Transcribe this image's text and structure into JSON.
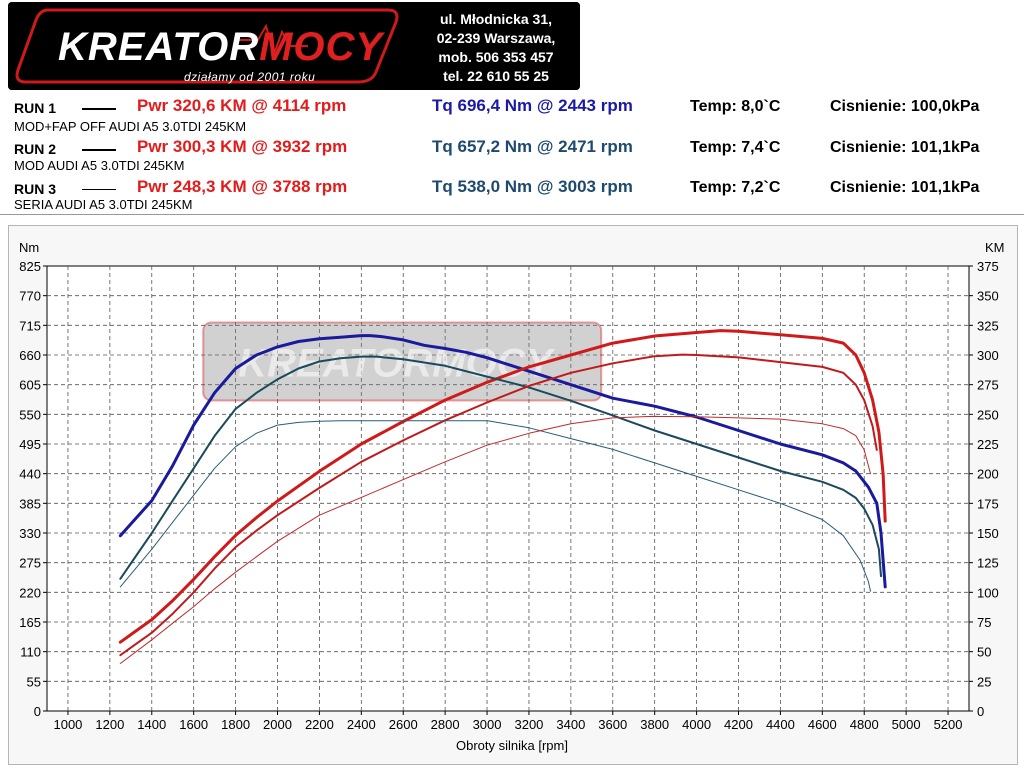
{
  "header": {
    "logo_text": "KREATORMOCY",
    "logo_part1": "KREATOR",
    "logo_part2": "MOCY",
    "tagline": "działamy od 2001 roku",
    "contact": [
      "ul. Młodnicka 31,",
      "02-239  Warszawa,",
      "mob.  506 353 457",
      "tel.  22 610 55 25"
    ]
  },
  "runs": [
    {
      "label": "RUN 1",
      "line_width": 2,
      "pwr": "Pwr  320,6 KM @ 4114 rpm",
      "tq": "Tq 696,4 Nm @ 2443 rpm",
      "tq_color": "#1a1aa6",
      "temp": "Temp: 8,0`C",
      "pressure": "Cisnienie: 100,0kPa",
      "desc": "MOD+FAP OFF AUDI A5 3.0TDI 245KM"
    },
    {
      "label": "RUN 2",
      "line_width": 1.5,
      "pwr": "Pwr  300,3 KM @ 3932 rpm",
      "tq": "Tq 657,2 Nm @ 2471 rpm",
      "tq_color": "#1d4a6e",
      "temp": "Temp: 7,4`C",
      "pressure": "Cisnienie: 101,1kPa",
      "desc": "MOD AUDI A5 3.0TDI 245KM"
    },
    {
      "label": "RUN 3",
      "line_width": 1,
      "pwr": "Pwr  248,3 KM @ 3788 rpm",
      "tq": "Tq 538,0 Nm @ 3003 rpm",
      "tq_color": "#1d4a6e",
      "temp": "Temp: 7,2`C",
      "pressure": "Cisnienie: 101,1kPa",
      "desc": "SERIA  AUDI A5 3.0TDI 245KM"
    }
  ],
  "chart_data": {
    "type": "line",
    "xlabel": "Obroty silnika [rpm]",
    "ylabel_left": "Nm",
    "ylabel_right": "KM",
    "xlim": [
      900,
      5300
    ],
    "ylim_left": [
      0,
      825
    ],
    "ylim_right": [
      0,
      375
    ],
    "x_ticks": [
      1000,
      1200,
      1400,
      1600,
      1800,
      2000,
      2200,
      2400,
      2600,
      2800,
      3000,
      3200,
      3400,
      3600,
      3800,
      4000,
      4200,
      4400,
      4600,
      4800,
      5000,
      5200
    ],
    "y_ticks_left": [
      0,
      55,
      110,
      165,
      220,
      275,
      330,
      385,
      440,
      495,
      550,
      605,
      660,
      715,
      770,
      825
    ],
    "y_ticks_right": [
      0,
      25,
      50,
      75,
      100,
      125,
      150,
      175,
      200,
      225,
      250,
      275,
      300,
      325,
      350,
      375
    ],
    "grid": true,
    "watermark": "KREATORMOCY",
    "series": [
      {
        "run": "RUN 1",
        "quantity": "torque",
        "axis": "left",
        "color": "#1a1a9c",
        "width": 3,
        "x": [
          1250,
          1400,
          1500,
          1600,
          1700,
          1800,
          1900,
          2000,
          2100,
          2200,
          2300,
          2400,
          2443,
          2500,
          2600,
          2700,
          2800,
          2900,
          3000,
          3200,
          3400,
          3600,
          3800,
          4000,
          4200,
          4400,
          4600,
          4700,
          4760,
          4820,
          4860,
          4880,
          4900
        ],
        "y": [
          325,
          390,
          455,
          530,
          590,
          635,
          660,
          675,
          685,
          690,
          693,
          696,
          696,
          694,
          688,
          678,
          672,
          665,
          655,
          630,
          605,
          580,
          565,
          545,
          520,
          495,
          475,
          460,
          445,
          415,
          385,
          330,
          230
        ]
      },
      {
        "run": "RUN 1",
        "quantity": "power",
        "axis": "right",
        "color": "#d01a1a",
        "width": 3,
        "x": [
          1250,
          1400,
          1500,
          1600,
          1700,
          1800,
          1900,
          2000,
          2200,
          2400,
          2600,
          2800,
          3000,
          3200,
          3400,
          3600,
          3800,
          4000,
          4114,
          4200,
          4400,
          4600,
          4700,
          4760,
          4800,
          4840,
          4870,
          4890,
          4900
        ],
        "y": [
          58,
          77,
          93,
          111,
          130,
          148,
          163,
          177,
          202,
          225,
          244,
          262,
          277,
          290,
          300,
          310,
          316,
          319,
          320.6,
          320,
          317,
          314,
          310,
          300,
          285,
          262,
          235,
          200,
          160
        ]
      },
      {
        "run": "RUN 2",
        "quantity": "torque",
        "axis": "left",
        "color": "#1a4a5c",
        "width": 2,
        "x": [
          1250,
          1400,
          1500,
          1600,
          1700,
          1800,
          1900,
          2000,
          2100,
          2200,
          2300,
          2400,
          2471,
          2600,
          2800,
          3000,
          3200,
          3400,
          3600,
          3800,
          4000,
          4200,
          4400,
          4600,
          4700,
          4760,
          4800,
          4840,
          4870,
          4880
        ],
        "y": [
          245,
          330,
          390,
          450,
          510,
          560,
          590,
          615,
          635,
          648,
          654,
          657,
          657,
          652,
          640,
          620,
          600,
          575,
          548,
          520,
          495,
          470,
          445,
          425,
          410,
          395,
          375,
          345,
          300,
          250
        ]
      },
      {
        "run": "RUN 2",
        "quantity": "power",
        "axis": "right",
        "color": "#c01a1a",
        "width": 2,
        "x": [
          1250,
          1400,
          1500,
          1600,
          1700,
          1800,
          1900,
          2000,
          2200,
          2400,
          2600,
          2800,
          3000,
          3200,
          3400,
          3600,
          3800,
          3932,
          4000,
          4200,
          4400,
          4600,
          4700,
          4760,
          4800,
          4840,
          4860
        ],
        "y": [
          47,
          66,
          82,
          100,
          120,
          138,
          152,
          165,
          188,
          210,
          228,
          245,
          260,
          274,
          285,
          293,
          299,
          300.3,
          300,
          298,
          294,
          290,
          285,
          275,
          262,
          240,
          220
        ]
      },
      {
        "run": "RUN 3",
        "quantity": "torque",
        "axis": "left",
        "color": "#2a5a7a",
        "width": 1,
        "x": [
          1250,
          1400,
          1500,
          1600,
          1700,
          1800,
          1900,
          2000,
          2100,
          2200,
          2300,
          2400,
          2600,
          2800,
          3003,
          3200,
          3400,
          3600,
          3800,
          4000,
          4200,
          4400,
          4600,
          4700,
          4780,
          4820,
          4830
        ],
        "y": [
          230,
          300,
          350,
          400,
          450,
          490,
          515,
          530,
          535,
          537,
          538,
          538,
          538,
          538,
          538,
          525,
          505,
          485,
          460,
          435,
          410,
          385,
          355,
          325,
          280,
          240,
          222
        ]
      },
      {
        "run": "RUN 3",
        "quantity": "power",
        "axis": "right",
        "color": "#c02a2a",
        "width": 1,
        "x": [
          1250,
          1400,
          1500,
          1600,
          1700,
          1800,
          1900,
          2000,
          2200,
          2400,
          2600,
          2800,
          3000,
          3200,
          3400,
          3600,
          3788,
          4000,
          4200,
          4400,
          4600,
          4700,
          4760,
          4800,
          4830
        ],
        "y": [
          40,
          60,
          74,
          88,
          103,
          117,
          130,
          143,
          165,
          180,
          195,
          210,
          224,
          234,
          242,
          247,
          248.3,
          248,
          247,
          246,
          242,
          238,
          232,
          220,
          200
        ]
      }
    ]
  }
}
